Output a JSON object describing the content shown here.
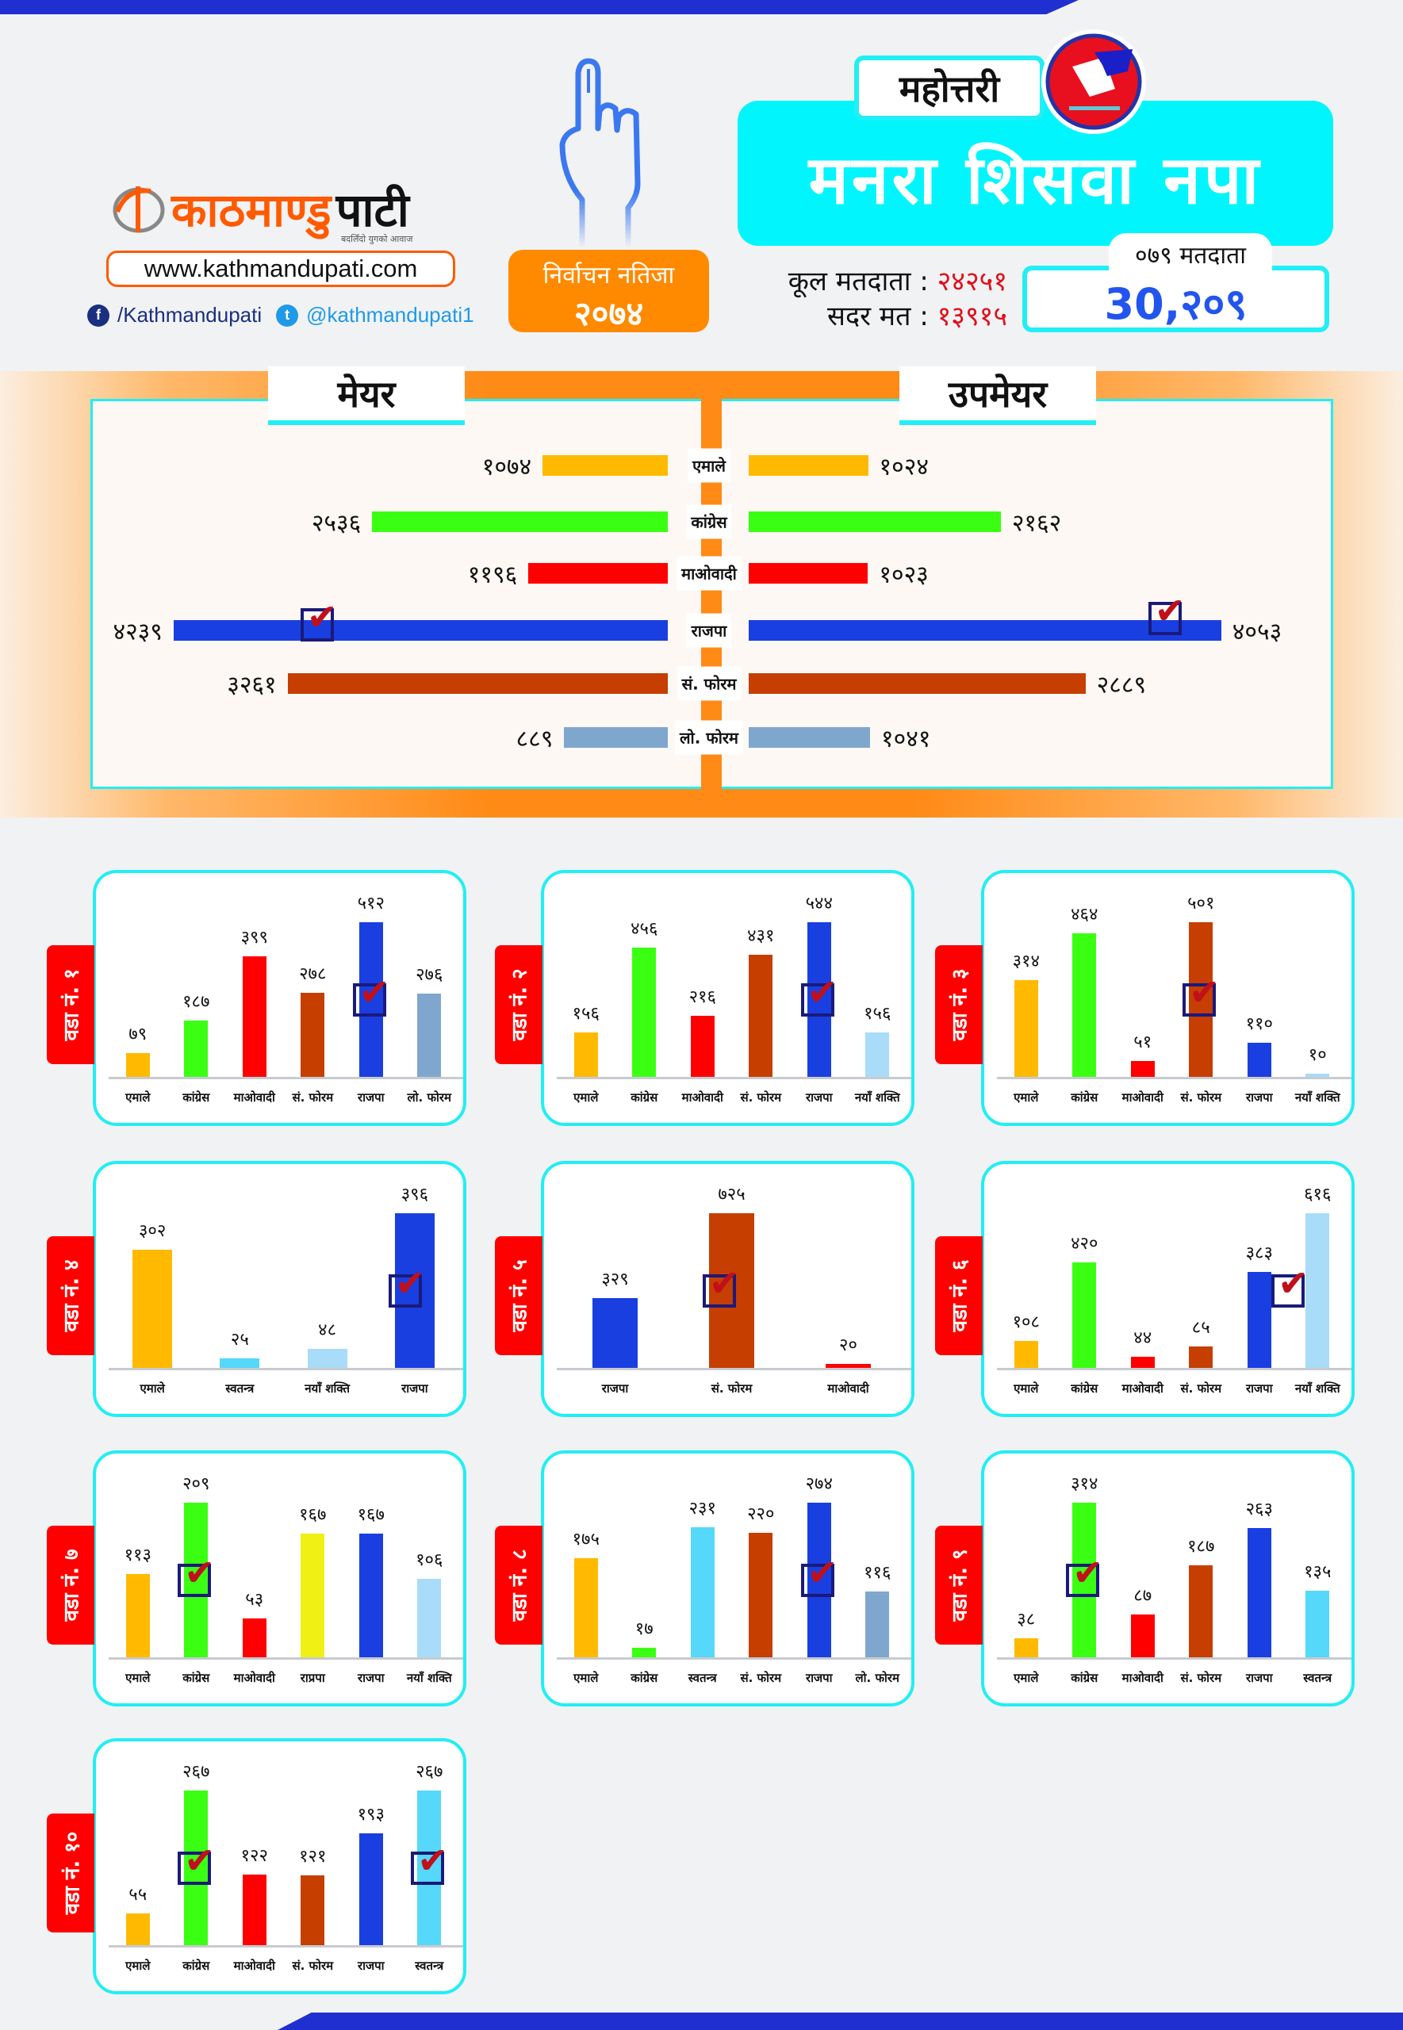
{
  "brand": {
    "logo_text_a": "काठमाण्डु",
    "logo_text_b": "पाटी",
    "tagline": "बदलिँदो युगको आवाज",
    "url": "www.kathmandupati.com",
    "facebook": "/Kathmandupati",
    "twitter": "@kathmandupati1"
  },
  "result_badge": {
    "line1": "निर्वाचन नतिजा",
    "line2": "२०७४"
  },
  "district": "महोत्तरी",
  "municipality": "मनरा शिसवा नपा",
  "voters": {
    "total_label": "कूल मतदाता :",
    "total_value": "२४२५१",
    "valid_label": "सदर मत :",
    "valid_value": "१३९१५",
    "v079_label": "०७९ मतदाता",
    "v079_value": "30,२०९"
  },
  "colors": {
    "एमाले": "#ffba00",
    "कांग्रेस": "#3aff12",
    "माओवादी": "#ff0000",
    "सं. फोरम": "#c63e00",
    "राजपा": "#1a3fe0",
    "लो. फोरम": "#7fa7ce",
    "नयाँ शक्ति": "#a8dcf8",
    "स्वतन्त्र": "#55d8fa",
    "राप्रपा": "#f0f014"
  },
  "chart_data": {
    "type": "bar",
    "mayor_deputy": {
      "type": "bar",
      "mayor_title": "मेयर",
      "deputy_title": "उपमेयर",
      "rows": [
        {
          "party": "एमाले",
          "mayor": 1074,
          "mayor_label": "१०७४",
          "deputy": 1024,
          "deputy_label": "१०२४"
        },
        {
          "party": "कांग्रेस",
          "mayor": 2536,
          "mayor_label": "२५३६",
          "deputy": 2162,
          "deputy_label": "२१६२"
        },
        {
          "party": "माओवादी",
          "mayor": 1196,
          "mayor_label": "११९६",
          "deputy": 1023,
          "deputy_label": "१०२३"
        },
        {
          "party": "राजपा",
          "mayor": 4239,
          "mayor_label": "४२३९",
          "deputy": 4053,
          "deputy_label": "४०५३",
          "winner": true
        },
        {
          "party": "सं. फोरम",
          "mayor": 3261,
          "mayor_label": "३२६१",
          "deputy": 2889,
          "deputy_label": "२८८९"
        },
        {
          "party": "लो. फोरम",
          "mayor": 889,
          "mayor_label": "८८९",
          "deputy": 1041,
          "deputy_label": "१०४१"
        }
      ]
    },
    "wards": [
      {
        "label": "वडा नं. १",
        "parties": [
          "एमाले",
          "कांग्रेस",
          "माओवादी",
          "सं. फोरम",
          "राजपा",
          "लो. फोरम"
        ],
        "values": [
          79,
          187,
          399,
          278,
          512,
          276
        ],
        "value_labels": [
          "७९",
          "१८७",
          "३९९",
          "२७८",
          "५१२",
          "२७६"
        ],
        "winners": [
          4
        ]
      },
      {
        "label": "वडा नं. २",
        "parties": [
          "एमाले",
          "कांग्रेस",
          "माओवादी",
          "सं. फोरम",
          "राजपा",
          "नयाँ शक्ति"
        ],
        "values": [
          156,
          456,
          216,
          431,
          544,
          156
        ],
        "value_labels": [
          "१५६",
          "४५६",
          "२१६",
          "४३१",
          "५४४",
          "१५६"
        ],
        "winners": [
          4
        ]
      },
      {
        "label": "वडा नं. ३",
        "parties": [
          "एमाले",
          "कांग्रेस",
          "माओवादी",
          "सं. फोरम",
          "राजपा",
          "नयाँ शक्ति"
        ],
        "values": [
          314,
          464,
          51,
          501,
          110,
          10
        ],
        "value_labels": [
          "३१४",
          "४६४",
          "५१",
          "५०१",
          "११०",
          "१०"
        ],
        "winners": [
          3
        ]
      },
      {
        "label": "वडा नं. ४",
        "parties": [
          "एमाले",
          "स्वतन्त्र",
          "नयाँ शक्ति",
          "राजपा"
        ],
        "values": [
          302,
          25,
          48,
          396
        ],
        "value_labels": [
          "३०२",
          "२५",
          "४८",
          "३९६"
        ],
        "winners": [
          3
        ]
      },
      {
        "label": "वडा नं. ५",
        "parties": [
          "राजपा",
          "सं. फोरम",
          "माओवादी"
        ],
        "values": [
          329,
          725,
          20
        ],
        "value_labels": [
          "३२९",
          "७२५",
          "२०"
        ],
        "winners": [
          1
        ]
      },
      {
        "label": "वडा नं. ६",
        "parties": [
          "एमाले",
          "कांग्रेस",
          "माओवादी",
          "सं. फोरम",
          "राजपा",
          "नयाँ शक्ति"
        ],
        "values": [
          108,
          420,
          44,
          85,
          383,
          616
        ],
        "value_labels": [
          "१०८",
          "४२०",
          "४४",
          "८५",
          "३८३",
          "६१६"
        ],
        "winners": [
          5
        ]
      },
      {
        "label": "वडा नं. ७",
        "parties": [
          "एमाले",
          "कांग्रेस",
          "माओवादी",
          "राप्रपा",
          "राजपा",
          "नयाँ शक्ति"
        ],
        "values": [
          113,
          209,
          53,
          167,
          167,
          106
        ],
        "value_labels": [
          "११३",
          "२०९",
          "५३",
          "१६७",
          "१६७",
          "१०६"
        ],
        "winners": [
          1
        ]
      },
      {
        "label": "वडा नं. ८",
        "parties": [
          "एमाले",
          "कांग्रेस",
          "स्वतन्त्र",
          "सं. फोरम",
          "राजपा",
          "लो. फोरम"
        ],
        "values": [
          175,
          17,
          231,
          220,
          274,
          116
        ],
        "value_labels": [
          "१७५",
          "१७",
          "२३१",
          "२२०",
          "२७४",
          "११६"
        ],
        "winners": [
          4
        ]
      },
      {
        "label": "वडा नं. ९",
        "parties": [
          "एमाले",
          "कांग्रेस",
          "माओवादी",
          "सं. फोरम",
          "राजपा",
          "स्वतन्त्र"
        ],
        "values": [
          38,
          314,
          87,
          187,
          263,
          135
        ],
        "value_labels": [
          "३८",
          "३१४",
          "८७",
          "१८७",
          "२६३",
          "१३५"
        ],
        "winners": [
          1
        ]
      },
      {
        "label": "वडा नं. १०",
        "parties": [
          "एमाले",
          "कांग्रेस",
          "माओवादी",
          "सं. फोरम",
          "राजपा",
          "स्वतन्त्र"
        ],
        "values": [
          55,
          267,
          122,
          121,
          193,
          267
        ],
        "value_labels": [
          "५५",
          "२६७",
          "१२२",
          "१२१",
          "१९३",
          "२६७"
        ],
        "winners": [
          1,
          5
        ]
      }
    ]
  }
}
